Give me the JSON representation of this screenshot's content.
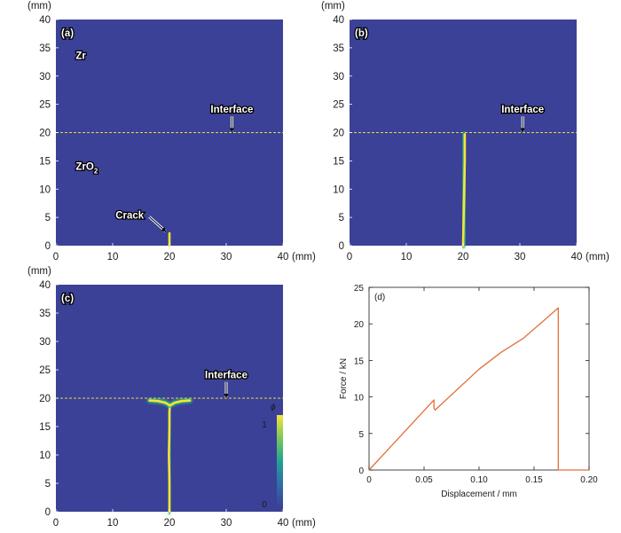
{
  "chart_data": [
    {
      "type": "heatmap",
      "panel_label": "(a)",
      "x_unit": "(mm)",
      "y_unit": "(mm)",
      "xlim": [
        0,
        40
      ],
      "ylim": [
        0,
        40
      ],
      "xticks": [
        "0",
        "10",
        "20",
        "30",
        "40"
      ],
      "yticks": [
        "0",
        "5",
        "10",
        "15",
        "20",
        "25",
        "30",
        "35",
        "40"
      ],
      "background_color": "#3b4197",
      "crack_color": "#f6e43a",
      "interface_y": 20,
      "annotations": [
        {
          "text": "Zr",
          "x": 3.5,
          "y": 33
        },
        {
          "text": "ZrO",
          "sub": "2",
          "x": 3.5,
          "y": 13.4
        },
        {
          "text": "Interface",
          "x": 31,
          "y": 23.5,
          "arrow_to": [
            31,
            20
          ]
        },
        {
          "text": "Crack",
          "x": 10.5,
          "y": 4.8,
          "arrow_to": [
            19.3,
            2.4
          ]
        }
      ],
      "crack_paths": [
        [
          [
            20,
            0
          ],
          [
            20,
            2.2
          ]
        ]
      ]
    },
    {
      "type": "heatmap",
      "panel_label": "(b)",
      "x_unit": "(mm)",
      "y_unit": "(mm)",
      "xlim": [
        0,
        40
      ],
      "ylim": [
        0,
        40
      ],
      "xticks": [
        "0",
        "10",
        "20",
        "30",
        "40"
      ],
      "yticks": [
        "0",
        "5",
        "10",
        "15",
        "20",
        "25",
        "30",
        "35",
        "40"
      ],
      "background_color": "#3b4197",
      "crack_color": "#f6e43a",
      "interface_y": 20,
      "annotations": [
        {
          "text": "Interface",
          "x": 30.5,
          "y": 23.5,
          "arrow_to": [
            30.5,
            20
          ]
        }
      ],
      "crack_paths": [
        [
          [
            20,
            0
          ],
          [
            20.1,
            5
          ],
          [
            20.2,
            10
          ],
          [
            20.3,
            15
          ],
          [
            20.3,
            19.7
          ]
        ]
      ]
    },
    {
      "type": "heatmap",
      "panel_label": "(c)",
      "x_unit": "(mm)",
      "y_unit": "(mm)",
      "xlim": [
        0,
        40
      ],
      "ylim": [
        0,
        40
      ],
      "xticks": [
        "0",
        "10",
        "20",
        "30",
        "40"
      ],
      "yticks": [
        "0",
        "5",
        "10",
        "15",
        "20",
        "25",
        "30",
        "35",
        "40"
      ],
      "background_color": "#3b4197",
      "crack_color": "#f6e43a",
      "interface_y": 20,
      "annotations": [
        {
          "text": "Interface",
          "x": 30,
          "y": 23.5,
          "arrow_to": [
            30,
            20
          ]
        }
      ],
      "crack_paths": [
        [
          [
            20,
            0
          ],
          [
            20,
            5
          ],
          [
            19.9,
            10
          ],
          [
            20,
            15
          ],
          [
            20,
            17.5
          ],
          [
            20.1,
            18.7
          ]
        ],
        [
          [
            16.5,
            19.6
          ],
          [
            18,
            19.5
          ],
          [
            19.3,
            19.2
          ],
          [
            20.1,
            18.7
          ],
          [
            20.9,
            19.2
          ],
          [
            22.2,
            19.5
          ],
          [
            23.6,
            19.6
          ]
        ]
      ],
      "colorbar": {
        "symbol": "ϕ",
        "max_label": "1",
        "min_label": "0",
        "range": [
          0,
          1
        ]
      }
    },
    {
      "type": "line",
      "panel_label": "(d)",
      "xlabel": "Displacement / mm",
      "ylabel": "Force / kN",
      "xlim": [
        0,
        0.2
      ],
      "ylim": [
        0,
        25
      ],
      "xticks": [
        "0",
        "0.05",
        "0.10",
        "0.15",
        "0.20"
      ],
      "yticks": [
        "0",
        "5",
        "10",
        "15",
        "20",
        "25"
      ],
      "line_color": "#e2703a",
      "series": [
        {
          "x": [
            0,
            0.059,
            0.059,
            0.06,
            0.08,
            0.1,
            0.12,
            0.14,
            0.16,
            0.172,
            0.172,
            0.2
          ],
          "y": [
            0,
            9.6,
            8.5,
            8.2,
            11.0,
            13.8,
            16.1,
            18.0,
            20.6,
            22.2,
            0,
            0
          ]
        }
      ]
    }
  ]
}
